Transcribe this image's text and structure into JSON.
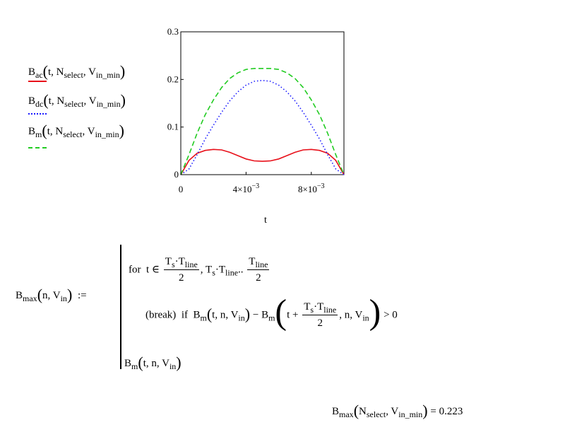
{
  "chart_data": {
    "type": "line",
    "x_label": "t",
    "xlim": [
      0,
      0.01
    ],
    "ylim": [
      0,
      0.3
    ],
    "y_ticks": [
      {
        "value": 0,
        "label": "0"
      },
      {
        "value": 0.1,
        "label": "0.1"
      },
      {
        "value": 0.2,
        "label": "0.2"
      },
      {
        "value": 0.3,
        "label": "0.3"
      }
    ],
    "x_ticks": [
      {
        "value": 0,
        "label": "0"
      },
      {
        "value": 0.004,
        "label": "4×10",
        "exp": "−3"
      },
      {
        "value": 0.008,
        "label": "8×10",
        "exp": "−3"
      }
    ],
    "x": [
      0,
      0.0005,
      0.001,
      0.0015,
      0.002,
      0.0025,
      0.003,
      0.0035,
      0.004,
      0.0045,
      0.005,
      0.0055,
      0.006,
      0.0065,
      0.007,
      0.0075,
      0.008,
      0.0085,
      0.009,
      0.0095,
      0.01
    ],
    "series": [
      {
        "name": "Bac",
        "color": "#e8101a",
        "dash": "solid",
        "values": [
          0,
          0.03,
          0.045,
          0.051,
          0.053,
          0.052,
          0.047,
          0.04,
          0.033,
          0.029,
          0.028,
          0.029,
          0.033,
          0.04,
          0.047,
          0.052,
          0.053,
          0.051,
          0.045,
          0.03,
          0
        ]
      },
      {
        "name": "Bdc",
        "color": "#1a1aff",
        "dash": "dotted",
        "values": [
          0,
          0.012,
          0.042,
          0.075,
          0.104,
          0.131,
          0.155,
          0.174,
          0.188,
          0.196,
          0.198,
          0.196,
          0.188,
          0.174,
          0.155,
          0.131,
          0.104,
          0.075,
          0.042,
          0.012,
          0
        ]
      },
      {
        "name": "Bm",
        "color": "#22cc22",
        "dash": "dashed",
        "values": [
          0,
          0.042,
          0.087,
          0.126,
          0.157,
          0.183,
          0.202,
          0.214,
          0.221,
          0.223,
          0.223,
          0.223,
          0.221,
          0.214,
          0.202,
          0.183,
          0.157,
          0.126,
          0.087,
          0.042,
          0
        ]
      }
    ]
  },
  "legend": [
    {
      "main": "B",
      "sub": "ac",
      "args": "t, N",
      "args_sub": "select",
      "arg2": "V",
      "arg2_sub": "in_min",
      "color": "#e8101a"
    },
    {
      "main": "B",
      "sub": "dc",
      "args": "t, N",
      "args_sub": "select",
      "arg2": "V",
      "arg2_sub": "in_min",
      "color": "#1a1aff"
    },
    {
      "main": "B",
      "sub": "m",
      "args": "t, N",
      "args_sub": "select",
      "arg2": "V",
      "arg2_sub": "in_min",
      "color": "#22cc22"
    }
  ],
  "definition": {
    "lhs_name": "B",
    "lhs_sub": "max",
    "lhs_arg1": "n",
    "lhs_arg2": "V",
    "lhs_arg2_sub": "in",
    "assign": ":=",
    "for_kw": "for",
    "for_var": "t",
    "in_sym": "∈",
    "ts": "T",
    "ts_sub": "s",
    "tline": "T",
    "tline_sub": "line",
    "two": "2",
    "range_dots": "..",
    "break_kw": "(break)",
    "if_kw": "if",
    "cond_fn": "B",
    "cond_fn_sub": "m",
    "cond_op": "−",
    "cond_gt": "> 0",
    "ret_fn": "B",
    "ret_fn_sub": "m",
    "arg_t": "t",
    "arg_n": "n",
    "arg_v": "V",
    "arg_v_sub": "in",
    "plus": "+",
    "dot": "·"
  },
  "result": {
    "fn": "B",
    "fn_sub": "max",
    "arg1": "N",
    "arg1_sub": "select",
    "arg2": "V",
    "arg2_sub": "in_min",
    "eq": "=",
    "value": "0.223"
  }
}
